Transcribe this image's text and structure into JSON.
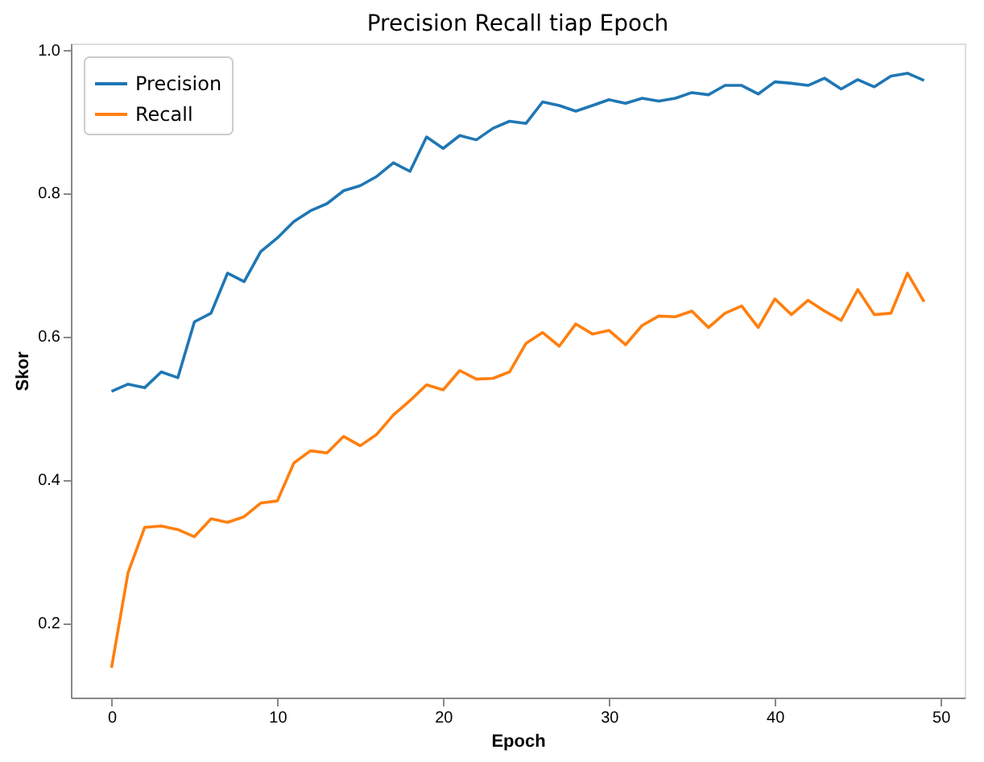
{
  "chart_data": {
    "type": "line",
    "title": "Precision Recall tiap Epoch",
    "xlabel": "Epoch",
    "ylabel": "Skor",
    "x": [
      0,
      1,
      2,
      3,
      4,
      5,
      6,
      7,
      8,
      9,
      10,
      11,
      12,
      13,
      14,
      15,
      16,
      17,
      18,
      19,
      20,
      21,
      22,
      23,
      24,
      25,
      26,
      27,
      28,
      29,
      30,
      31,
      32,
      33,
      34,
      35,
      36,
      37,
      38,
      39,
      40,
      41,
      42,
      43,
      44,
      45,
      46,
      47,
      48,
      49
    ],
    "series": [
      {
        "name": "Precision",
        "color": "#1f77b4",
        "values": [
          0.523,
          0.533,
          0.528,
          0.55,
          0.542,
          0.62,
          0.632,
          0.688,
          0.676,
          0.718,
          0.737,
          0.76,
          0.775,
          0.785,
          0.803,
          0.81,
          0.823,
          0.842,
          0.83,
          0.878,
          0.862,
          0.88,
          0.874,
          0.89,
          0.9,
          0.897,
          0.927,
          0.922,
          0.914,
          0.922,
          0.93,
          0.925,
          0.932,
          0.928,
          0.932,
          0.94,
          0.937,
          0.95,
          0.95,
          0.938,
          0.955,
          0.953,
          0.95,
          0.96,
          0.945,
          0.958,
          0.948,
          0.963,
          0.967,
          0.957
        ]
      },
      {
        "name": "Recall",
        "color": "#ff7f0e",
        "values": [
          0.137,
          0.27,
          0.333,
          0.335,
          0.33,
          0.32,
          0.345,
          0.34,
          0.348,
          0.367,
          0.37,
          0.423,
          0.44,
          0.437,
          0.46,
          0.447,
          0.463,
          0.49,
          0.51,
          0.532,
          0.525,
          0.552,
          0.54,
          0.541,
          0.55,
          0.59,
          0.605,
          0.586,
          0.617,
          0.603,
          0.608,
          0.588,
          0.615,
          0.628,
          0.627,
          0.635,
          0.612,
          0.632,
          0.642,
          0.612,
          0.652,
          0.63,
          0.65,
          0.635,
          0.622,
          0.665,
          0.63,
          0.632,
          0.688,
          0.648
        ]
      }
    ],
    "xlim": [
      -2.45,
      51.45
    ],
    "xticks": [
      0,
      10,
      20,
      30,
      40,
      50
    ],
    "ylim": [
      0.0955,
      1.0085
    ],
    "yticks": [
      {
        "value": 0.2,
        "label": "0.2"
      },
      {
        "value": 0.4,
        "label": "0.4"
      },
      {
        "value": 0.6,
        "label": "0.6"
      },
      {
        "value": 0.8,
        "label": "0.8"
      },
      {
        "value": 1.0,
        "label": "1.0"
      }
    ],
    "legend": "top left",
    "grid": false,
    "line_style": "solid",
    "marker": "none"
  }
}
